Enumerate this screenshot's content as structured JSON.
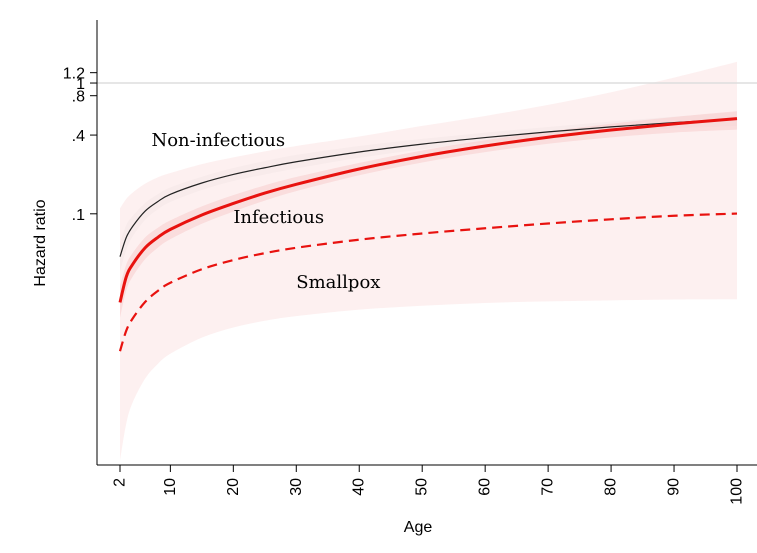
{
  "chart_data": {
    "type": "line",
    "title": "",
    "xlabel": "Age",
    "ylabel": "Hazard ratio",
    "y_scale": "log",
    "xlim": [
      2,
      100
    ],
    "ylim": [
      0.0012,
      1.5
    ],
    "grid": false,
    "legend": "none",
    "x_ticks": [
      2,
      10,
      20,
      30,
      40,
      50,
      60,
      70,
      80,
      90,
      100
    ],
    "x_tick_labels": [
      "2",
      "10",
      "20",
      "30",
      "40",
      "50",
      "60",
      "70",
      "80",
      "90",
      "100"
    ],
    "y_ticks": [
      0.1,
      0.4,
      0.8,
      1,
      1.2
    ],
    "y_tick_labels": [
      ".1",
      ".4",
      ".8",
      "1",
      "1.2"
    ],
    "reference_line": {
      "y": 1,
      "color": "#dddddd"
    },
    "annotations": [
      {
        "text": "Non-infectious",
        "x": 7,
        "y": 0.33
      },
      {
        "text": "Infectious",
        "x": 20,
        "y": 0.085
      },
      {
        "text": "Smallpox",
        "x": 30,
        "y": 0.027
      }
    ],
    "x": [
      2,
      3,
      4,
      6,
      8,
      10,
      15,
      20,
      25,
      30,
      40,
      50,
      60,
      70,
      80,
      90,
      100
    ],
    "series": [
      {
        "name": "Non-infectious",
        "color": "#222222",
        "dash": "solid",
        "width": 1.2,
        "values": [
          0.047,
          0.066,
          0.08,
          0.105,
          0.124,
          0.141,
          0.172,
          0.2,
          0.225,
          0.25,
          0.297,
          0.341,
          0.383,
          0.423,
          0.462,
          0.498,
          0.532
        ]
      },
      {
        "name": "Infectious",
        "color": "#e8120f",
        "dash": "solid",
        "width": 3,
        "values": [
          0.021,
          0.033,
          0.041,
          0.055,
          0.066,
          0.076,
          0.098,
          0.12,
          0.144,
          0.168,
          0.22,
          0.275,
          0.33,
          0.385,
          0.437,
          0.487,
          0.534
        ]
      },
      {
        "name": "Smallpox",
        "color": "#e8120f",
        "dash": "dashed",
        "width": 2.2,
        "values": [
          0.0089,
          0.0128,
          0.0158,
          0.0212,
          0.0257,
          0.0297,
          0.0377,
          0.0443,
          0.05,
          0.055,
          0.0634,
          0.0707,
          0.0775,
          0.0843,
          0.0908,
          0.0966,
          0.1004
        ]
      }
    ],
    "confidence_bands": [
      {
        "name": "Non-infectious",
        "color": "#eaeaea",
        "opacity": 0.55,
        "lower": [
          0.036,
          0.053,
          0.067,
          0.09,
          0.108,
          0.123,
          0.152,
          0.178,
          0.2,
          0.222,
          0.268,
          0.311,
          0.35,
          0.388,
          0.421,
          0.45,
          0.47
        ],
        "upper": [
          0.06,
          0.082,
          0.096,
          0.121,
          0.141,
          0.159,
          0.192,
          0.224,
          0.253,
          0.282,
          0.33,
          0.374,
          0.418,
          0.461,
          0.508,
          0.553,
          0.6
        ]
      },
      {
        "name": "Infectious",
        "color": "#f4aaaa",
        "opacity": 0.5,
        "lower": [
          0.016,
          0.026,
          0.033,
          0.045,
          0.055,
          0.064,
          0.084,
          0.104,
          0.126,
          0.149,
          0.197,
          0.247,
          0.296,
          0.343,
          0.384,
          0.418,
          0.44
        ],
        "upper": [
          0.028,
          0.041,
          0.05,
          0.066,
          0.078,
          0.089,
          0.114,
          0.139,
          0.165,
          0.191,
          0.245,
          0.305,
          0.365,
          0.426,
          0.488,
          0.55,
          0.61
        ]
      },
      {
        "name": "Smallpox",
        "color": "#fbe3e3",
        "opacity": 0.55,
        "lower": [
          0.0013,
          0.0025,
          0.0036,
          0.0055,
          0.0071,
          0.0085,
          0.0113,
          0.0135,
          0.0152,
          0.0165,
          0.0185,
          0.0198,
          0.0208,
          0.0214,
          0.0218,
          0.0221,
          0.0222
        ],
        "upper": [
          0.11,
          0.13,
          0.145,
          0.17,
          0.19,
          0.205,
          0.24,
          0.27,
          0.3,
          0.33,
          0.39,
          0.47,
          0.56,
          0.68,
          0.85,
          1.1,
          1.45
        ]
      }
    ]
  }
}
